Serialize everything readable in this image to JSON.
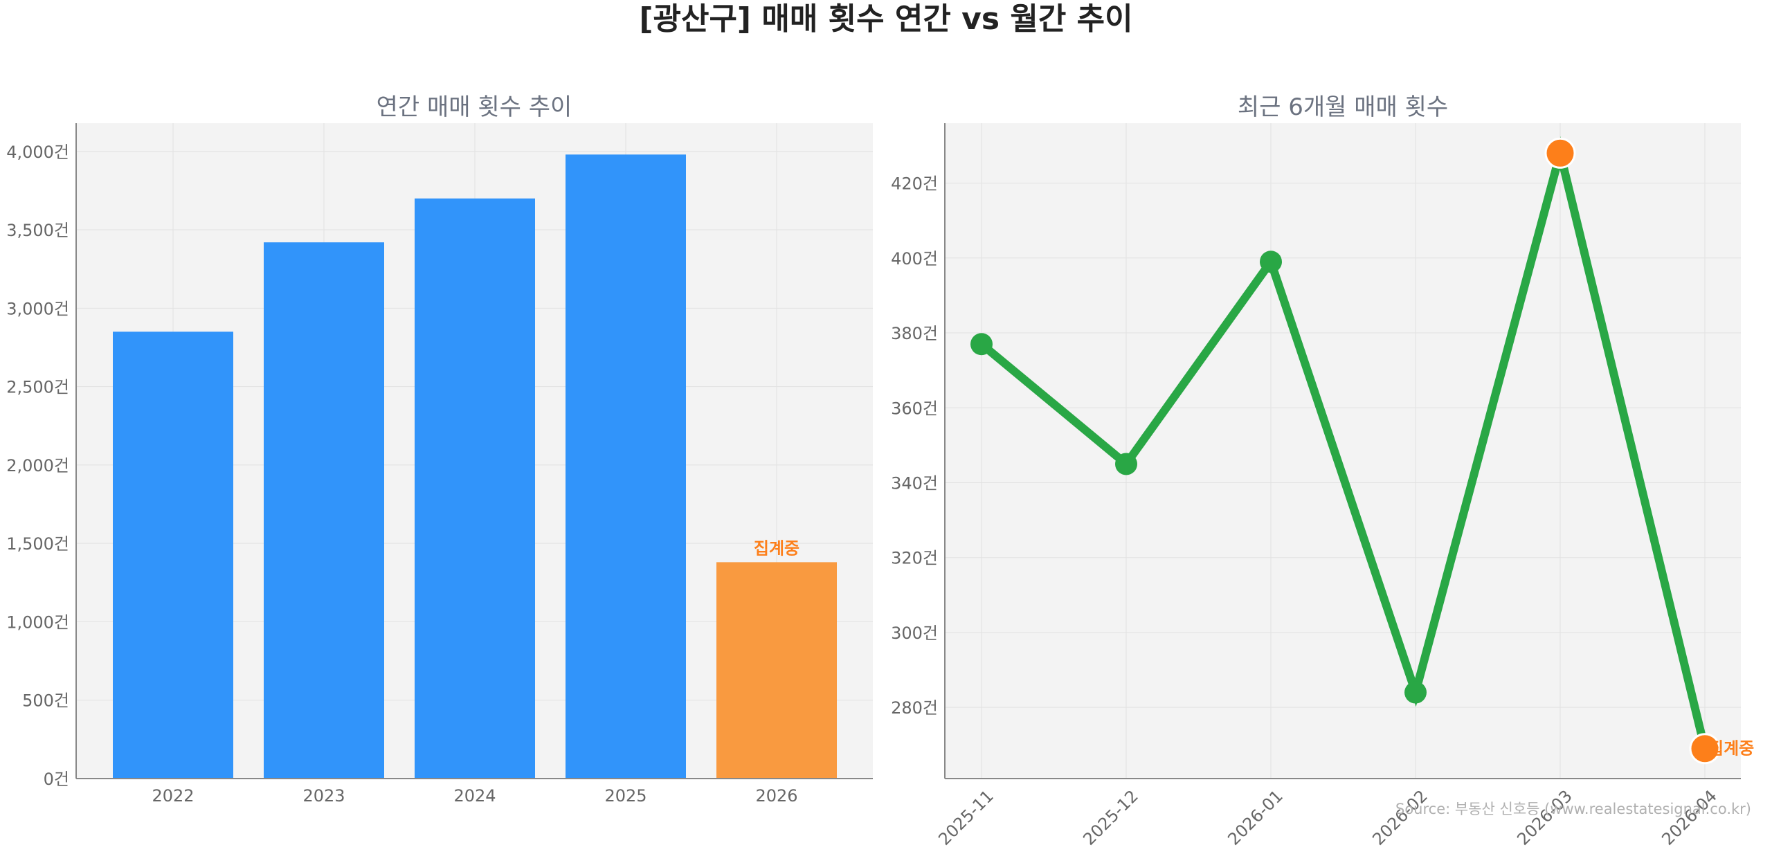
{
  "title": "[광산구] 매매 횟수 연간 vs 월간 추이",
  "source": "Source: 부동산 신호등 (www.realestatesignal.co.kr)",
  "colors": {
    "bar": "#3194fa",
    "bar_partial": "#f99a40",
    "line": "#29a745",
    "highlight": "#fd7f1a",
    "note": "#fd7f1a"
  },
  "chart_data": [
    {
      "type": "bar",
      "title": "연간 매매 횟수 추이",
      "categories": [
        "2022",
        "2023",
        "2024",
        "2025",
        "2026"
      ],
      "values": [
        2850,
        3420,
        3700,
        3980,
        1380
      ],
      "partial": [
        false,
        false,
        false,
        false,
        true
      ],
      "ylim": [
        0,
        4180
      ],
      "yticks": [
        0,
        500,
        1000,
        1500,
        2000,
        2500,
        3000,
        3500,
        4000
      ],
      "ytick_labels": [
        "0건",
        "500건",
        "1,000건",
        "1,500건",
        "2,000건",
        "2,500건",
        "3,000건",
        "3,500건",
        "4,000건"
      ],
      "annotation": {
        "category": "2026",
        "text": "집계중"
      },
      "grid": true
    },
    {
      "type": "line",
      "title": "최근 6개월 매매 횟수",
      "x": [
        "2025-11",
        "2025-12",
        "2026-01",
        "2026-02",
        "2026-03",
        "2026-04"
      ],
      "values": [
        377,
        345,
        399,
        284,
        428,
        269
      ],
      "highlight": [
        false,
        false,
        false,
        false,
        true,
        true
      ],
      "ylim": [
        261,
        436
      ],
      "yticks": [
        280,
        300,
        320,
        340,
        360,
        380,
        400,
        420
      ],
      "ytick_labels": [
        "280건",
        "300건",
        "320건",
        "340건",
        "360건",
        "380건",
        "400건",
        "420건"
      ],
      "annotation": {
        "x": "2026-04",
        "text": "집계중"
      },
      "grid": true
    }
  ]
}
